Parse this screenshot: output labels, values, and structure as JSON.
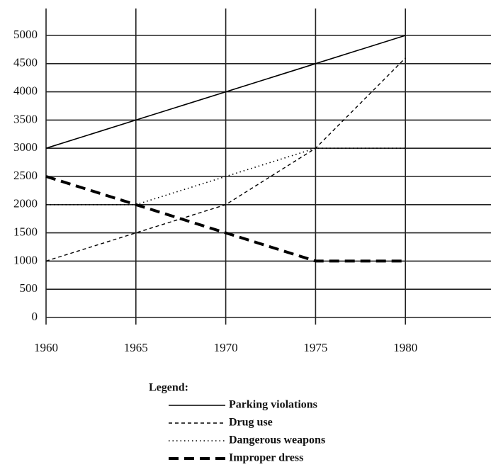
{
  "chart_data": {
    "type": "line",
    "x": [
      1960,
      1965,
      1970,
      1975,
      1980
    ],
    "xlim": [
      1960,
      1985
    ],
    "xticks": [
      1960,
      1965,
      1970,
      1975,
      1980
    ],
    "ylim": [
      0,
      5000
    ],
    "yticks": [
      0,
      500,
      1000,
      1500,
      2000,
      2500,
      3000,
      3500,
      4000,
      4500,
      5000
    ],
    "grid": true,
    "legend_title": "Legend:",
    "series": [
      {
        "name": "Parking violations",
        "color": "#000000",
        "style": "solid",
        "values": [
          3000,
          3500,
          4000,
          4500,
          5000
        ]
      },
      {
        "name": "Drug use",
        "color": "#000000",
        "style": "dashed",
        "values": [
          1000,
          1500,
          2000,
          3000,
          4600
        ]
      },
      {
        "name": "Dangerous weapons",
        "color": "#000000",
        "style": "dotted",
        "values": [
          2000,
          2000,
          2500,
          3000,
          3000
        ]
      },
      {
        "name": "Improper dress",
        "color": "#000000",
        "style": "thick-dashed",
        "values": [
          2500,
          2000,
          1500,
          1000,
          1000
        ]
      }
    ]
  }
}
